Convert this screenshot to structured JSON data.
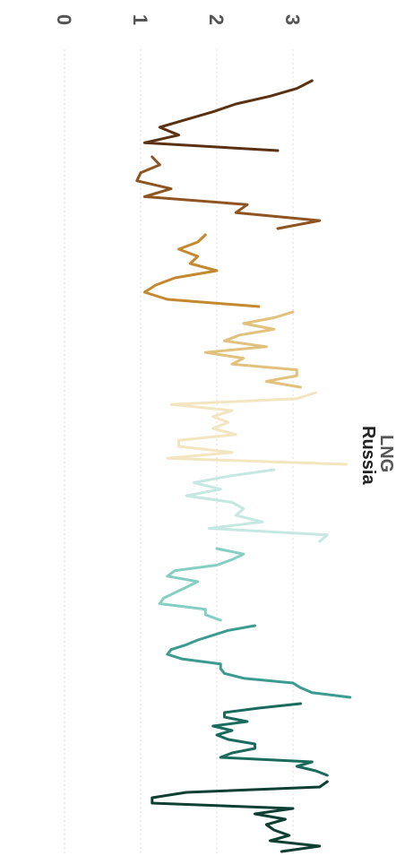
{
  "chart_data": {
    "type": "line",
    "orientation": "rotated-90-clockwise",
    "legend_position": "right",
    "grid": true,
    "xlabel": "LNG",
    "ylabel": "",
    "ylim": [
      0,
      3.3
    ],
    "yticks": [
      "0",
      "1",
      "2",
      "3"
    ],
    "colors": [
      "#5a3212",
      "#8e5422",
      "#c4882e",
      "#e1c17b",
      "#f2e5c0",
      "#c5e8e2",
      "#84cfc3",
      "#3c9b90",
      "#1a6b5d",
      "#0d3f32"
    ],
    "series": [
      {
        "name": "",
        "values": [
          3.25,
          3.05,
          2.7,
          2.25,
          1.95,
          1.6,
          1.25,
          1.5,
          1.05,
          2.8
        ]
      },
      {
        "name": "",
        "values": [
          1.15,
          1.25,
          1.0,
          0.95,
          1.4,
          1.05,
          2.4,
          2.25,
          3.35,
          2.8
        ]
      },
      {
        "name": "",
        "values": [
          1.85,
          1.75,
          1.5,
          1.75,
          1.65,
          2.0,
          1.45,
          1.2,
          1.05,
          1.35,
          2.55
        ]
      },
      {
        "name": "",
        "values": [
          3.0,
          2.75,
          2.35,
          2.75,
          2.3,
          2.1,
          2.65,
          1.85,
          2.35,
          2.2,
          3.05,
          3.05,
          2.65,
          3.1
        ]
      },
      {
        "name": "",
        "values": [
          3.3,
          3.05,
          1.4,
          2.2,
          1.95,
          2.15,
          1.95,
          2.25,
          1.5,
          1.5,
          2.2,
          1.35,
          3.7
        ]
      },
      {
        "name": "",
        "values": [
          2.75,
          2.15,
          1.7,
          2.05,
          1.6,
          2.2,
          2.35,
          2.25,
          2.6,
          1.9,
          3.45,
          3.35
        ]
      },
      {
        "name": "",
        "values": [
          2.0,
          2.35,
          2.2,
          2.0,
          1.45,
          1.35,
          1.75,
          1.6,
          1.45,
          1.3,
          1.25,
          1.85,
          1.85,
          2.05
        ]
      },
      {
        "name": "",
        "values": [
          2.5,
          2.15,
          1.95,
          1.75,
          1.6,
          1.4,
          1.35,
          1.55,
          2.05,
          2.05,
          2.1,
          2.35,
          3.0,
          3.1,
          3.25,
          3.75
        ]
      },
      {
        "name": "",
        "values": [
          3.1,
          2.55,
          2.1,
          2.1,
          2.4,
          1.95,
          2.2,
          2.0,
          2.15,
          2.5,
          2.5,
          2.2,
          2.05,
          3.25,
          3.05,
          3.3,
          3.45
        ]
      },
      {
        "name": "",
        "values": [
          3.45,
          3.35,
          1.6,
          1.15,
          1.15,
          3.0,
          2.5,
          2.9,
          2.65,
          2.75,
          2.95,
          2.7,
          3.35,
          2.85
        ]
      }
    ],
    "legend": [
      "Russia"
    ]
  }
}
